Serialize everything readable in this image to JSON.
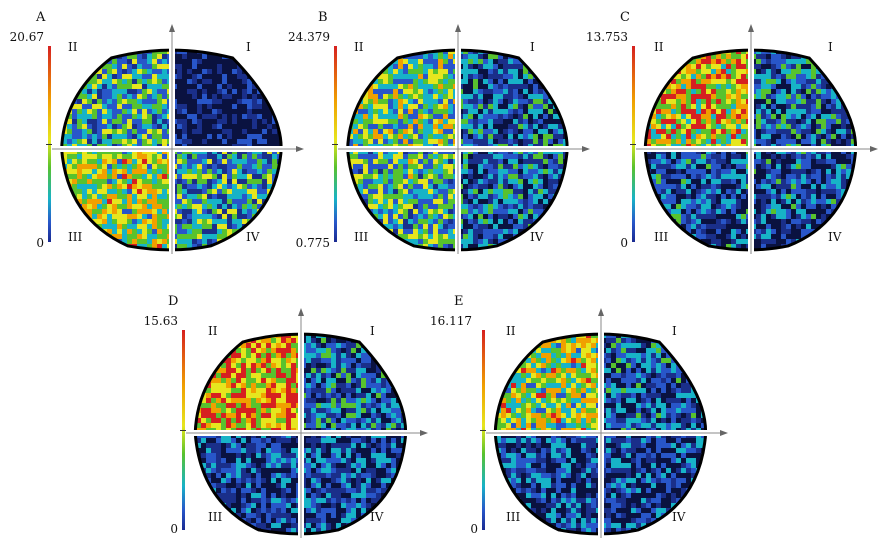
{
  "panels": [
    {
      "id": "A",
      "max": "20.67",
      "min": "0",
      "quadrants": {
        "I": "I",
        "II": "II",
        "III": "III",
        "IV": "IV"
      },
      "intensity": {
        "I": 0.08,
        "II": 0.45,
        "III": 0.62,
        "IV": 0.42
      }
    },
    {
      "id": "B",
      "max": "24.379",
      "min": "0.775",
      "quadrants": {
        "I": "I",
        "II": "II",
        "III": "III",
        "IV": "IV"
      },
      "intensity": {
        "I": 0.28,
        "II": 0.55,
        "III": 0.48,
        "IV": 0.3
      }
    },
    {
      "id": "C",
      "max": "13.753",
      "min": "0",
      "quadrants": {
        "I": "I",
        "II": "II",
        "III": "III",
        "IV": "IV"
      },
      "intensity": {
        "I": 0.3,
        "II": 0.72,
        "III": 0.25,
        "IV": 0.25
      }
    },
    {
      "id": "D",
      "max": "15.63",
      "min": "0",
      "quadrants": {
        "I": "I",
        "II": "II",
        "III": "III",
        "IV": "IV"
      },
      "intensity": {
        "I": 0.28,
        "II": 0.78,
        "III": 0.22,
        "IV": 0.22
      }
    },
    {
      "id": "E",
      "max": "16.117",
      "min": "0",
      "quadrants": {
        "I": "I",
        "II": "II",
        "III": "III",
        "IV": "IV"
      },
      "intensity": {
        "I": 0.26,
        "II": 0.62,
        "III": 0.22,
        "IV": 0.22
      }
    }
  ],
  "colors": {
    "scale": [
      "#0a1240",
      "#1a2f8a",
      "#2856c9",
      "#17b3c7",
      "#58c22e",
      "#e6e61e",
      "#f0a000",
      "#d62020"
    ],
    "background_dark": "#050a1e"
  }
}
